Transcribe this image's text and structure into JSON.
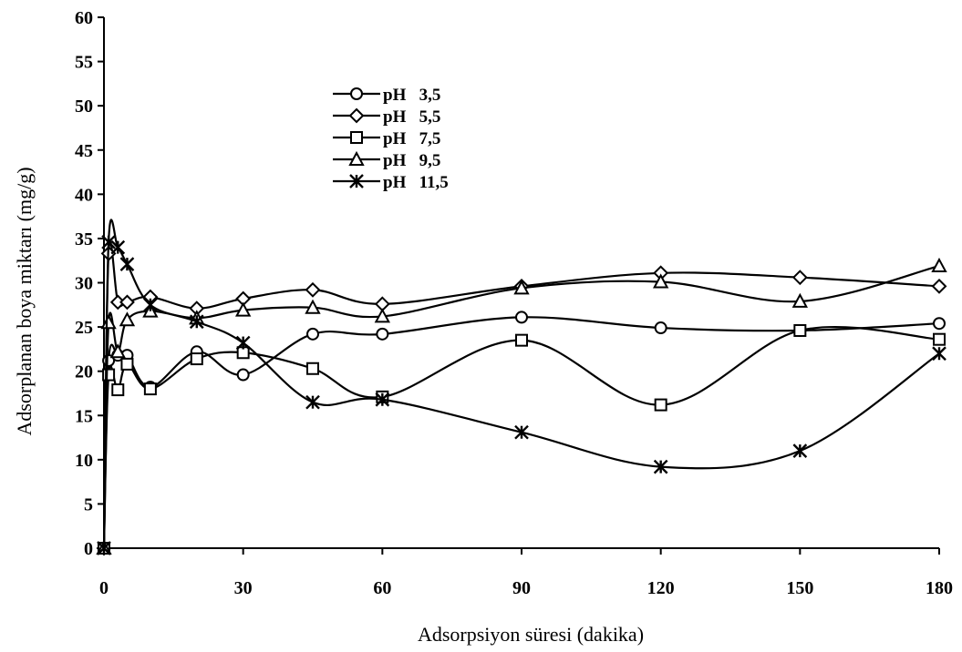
{
  "chart_data": {
    "type": "line",
    "xlabel": "Adsorpsiyon süresi (dakika)",
    "ylabel": "Adsorplanan boya miktarı (mg/g)",
    "xlim": [
      0,
      180
    ],
    "ylim": [
      0,
      60
    ],
    "xticks": [
      0,
      30,
      60,
      90,
      120,
      150,
      180
    ],
    "yticks": [
      0,
      5,
      10,
      15,
      20,
      25,
      30,
      35,
      40,
      45,
      50,
      55,
      60
    ],
    "grid": false,
    "legend_position": "top-center",
    "series": [
      {
        "name": "pH   3,5",
        "marker": "circle",
        "x": [
          0,
          1,
          3,
          5,
          10,
          20,
          30,
          45,
          60,
          90,
          120,
          150,
          180
        ],
        "y": [
          0,
          21.2,
          21.8,
          21.8,
          18.2,
          22.2,
          19.6,
          24.2,
          24.2,
          26.1,
          24.9,
          24.6,
          25.4
        ]
      },
      {
        "name": "pH   5,5",
        "marker": "diamond",
        "x": [
          0,
          1,
          3,
          5,
          10,
          20,
          30,
          45,
          60,
          90,
          120,
          150,
          180
        ],
        "y": [
          0,
          33.3,
          27.8,
          27.8,
          28.4,
          27.1,
          28.2,
          29.2,
          27.6,
          29.6,
          31.1,
          30.6,
          29.6
        ]
      },
      {
        "name": "pH   7,5",
        "marker": "square",
        "x": [
          0,
          1,
          3,
          5,
          10,
          20,
          30,
          45,
          60,
          90,
          120,
          150,
          180
        ],
        "y": [
          0,
          19.6,
          17.9,
          20.8,
          18.0,
          21.4,
          22.1,
          20.3,
          17.1,
          23.5,
          16.2,
          24.6,
          23.6
        ]
      },
      {
        "name": "pH   9,5",
        "marker": "triangle",
        "x": [
          0,
          1,
          3,
          5,
          10,
          20,
          30,
          45,
          60,
          90,
          120,
          150,
          180
        ],
        "y": [
          0,
          25.5,
          22.2,
          25.8,
          26.8,
          26.0,
          26.9,
          27.2,
          26.2,
          29.4,
          30.1,
          27.9,
          31.9
        ]
      },
      {
        "name": "pH   11,5",
        "marker": "asterisk",
        "x": [
          0,
          1,
          3,
          5,
          10,
          20,
          30,
          45,
          60,
          90,
          120,
          150,
          180
        ],
        "y": [
          0,
          34.6,
          34.0,
          32.1,
          27.5,
          25.6,
          23.2,
          16.5,
          16.8,
          13.1,
          9.2,
          11.0,
          22.0
        ]
      }
    ]
  }
}
